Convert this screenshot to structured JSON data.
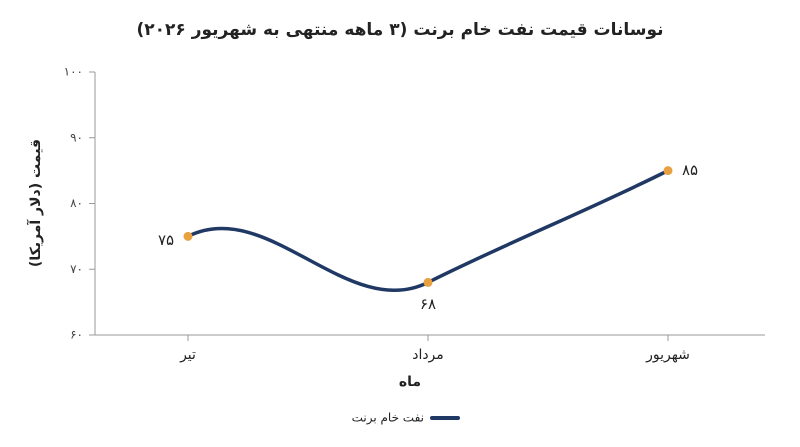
{
  "chart_data": {
    "type": "line",
    "title": "نوسانات قیمت نفت خام برنت (۳ ماهه منتهی به شهریور ۲۰۲۶)",
    "x_label": "ماه",
    "y_label": "قیمت (دلار آمریکا)",
    "categories": [
      "تیر",
      "مرداد",
      "شهریور"
    ],
    "series": [
      {
        "name": "نفت خام برنت",
        "color": "#1f3864",
        "marker_color": "#e8a040",
        "values": [
          75,
          68,
          85
        ],
        "value_labels": [
          "۷۵",
          "۶۸",
          "۸۵"
        ]
      }
    ],
    "ylim": [
      60,
      100
    ],
    "yticks": [
      {
        "value": 60,
        "label": "۶۰"
      },
      {
        "value": 70,
        "label": "۷۰"
      },
      {
        "value": 80,
        "label": "۸۰"
      },
      {
        "value": 90,
        "label": "۹۰"
      },
      {
        "value": 100,
        "label": "۱۰۰"
      }
    ]
  }
}
